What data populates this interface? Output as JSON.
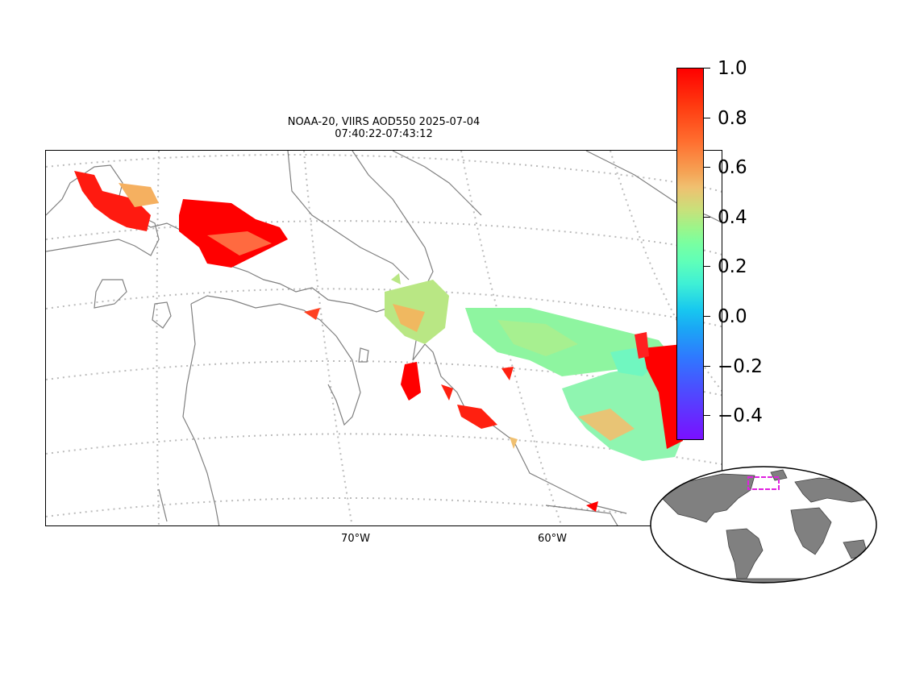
{
  "title": {
    "line1": "NOAA-20, VIIRS AOD550 2025-07-04",
    "line2": "07:40:22-07:43:12"
  },
  "map": {
    "longitude_labels": [
      "70°W",
      "60°W"
    ],
    "coastline_color": "#808080",
    "graticule_color": "#bbbbbb",
    "projection": "conic",
    "region": "Eastern Canada / Labrador Sea"
  },
  "colorbar": {
    "ticks": [
      "1.0",
      "0.8",
      "0.6",
      "0.4",
      "0.2",
      "0.0",
      "−0.2",
      "−0.4"
    ],
    "vmin": -0.5,
    "vmax": 1.0,
    "colormap": "rainbow"
  },
  "inset_globe": {
    "land_color": "#808080",
    "highlight_box_color": "#e020e0"
  },
  "chart_data": {
    "type": "heatmap",
    "variable": "AOD550",
    "range": [
      -0.5,
      1.0
    ]
  }
}
